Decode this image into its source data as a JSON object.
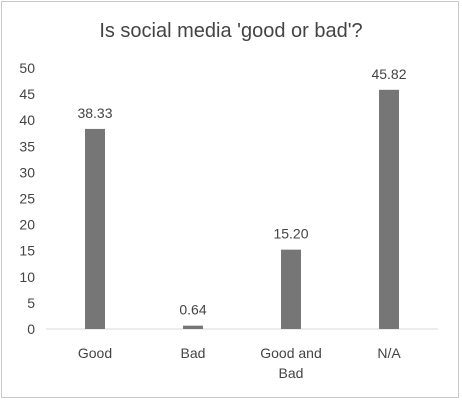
{
  "chart_data": {
    "type": "bar",
    "title": "Is social media 'good or bad'?",
    "categories": [
      "Good",
      "Bad",
      "Good and Bad",
      "N/A"
    ],
    "category_lines": [
      [
        "Good"
      ],
      [
        "Bad"
      ],
      [
        "Good and",
        "Bad"
      ],
      [
        "N/A"
      ]
    ],
    "values": [
      38.33,
      0.64,
      15.2,
      45.82
    ],
    "data_labels": [
      "38.33",
      "0.64",
      "15.20",
      "45.82"
    ],
    "yticks": [
      "0",
      "5",
      "10",
      "15",
      "20",
      "25",
      "30",
      "35",
      "40",
      "45",
      "50"
    ],
    "ylim": [
      0,
      50
    ],
    "xlabel": "",
    "ylabel": "",
    "grid": false,
    "legend": "none",
    "bar_color": "#767676",
    "axis_color": "#d9d9d9",
    "text_color": "#444444"
  }
}
